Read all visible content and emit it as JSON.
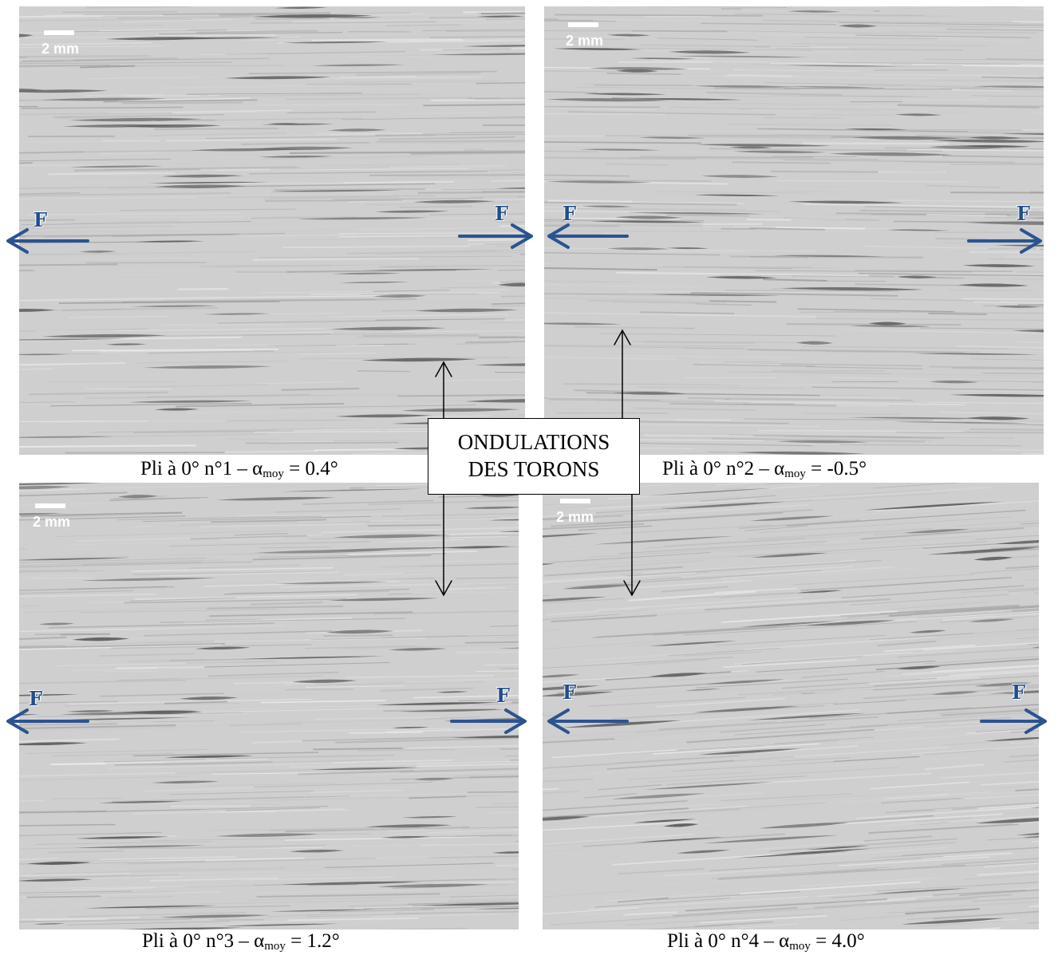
{
  "scale_label": "2 mm",
  "force_label": "F",
  "callout": {
    "line1": "ONDULATIONS",
    "line2": "DES TORONS"
  },
  "colors": {
    "arrow": "#2a5490",
    "fiber_light": "#cfcfcf",
    "fiber_dark": "#5e5e5e"
  },
  "panels": [
    {
      "prefix": "Pli à 0° n°1 – α",
      "sub": "moy",
      "suffix": " = 0.4°"
    },
    {
      "prefix": "Pli à 0° n°2 – α",
      "sub": "moy",
      "suffix": " = -0.5°"
    },
    {
      "prefix": "Pli à 0° n°3 – α",
      "sub": "moy",
      "suffix": " = 1.2°"
    },
    {
      "prefix": "Pli à 0° n°4 – α",
      "sub": "moy",
      "suffix": " = 4.0°"
    }
  ]
}
